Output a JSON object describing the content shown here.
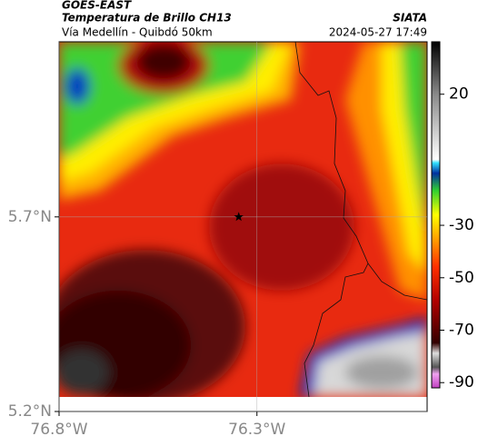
{
  "chart_data": {
    "type": "map",
    "title": "GOES-EAST",
    "subtitle": "Temperatura de Brillo CH13",
    "location": "Vía Medellín - Quibdó 50km",
    "source": "SIATA",
    "datetime": "2024-05-27 17:49",
    "xlim": [
      -76.8,
      -75.87
    ],
    "ylim": [
      5.2,
      6.15
    ],
    "xticks": [
      {
        "value": -76.8,
        "label": "76.8°W"
      },
      {
        "value": -76.3,
        "label": "76.3°W"
      }
    ],
    "yticks": [
      {
        "value": 5.2,
        "label": "5.2°N"
      },
      {
        "value": 5.7,
        "label": "5.7°N"
      }
    ],
    "marker": {
      "lon": -76.346,
      "lat": 5.7
    },
    "clim": [
      -92,
      40
    ],
    "cticks": [
      20,
      -30,
      -50,
      -70,
      -90
    ],
    "grid": true
  }
}
